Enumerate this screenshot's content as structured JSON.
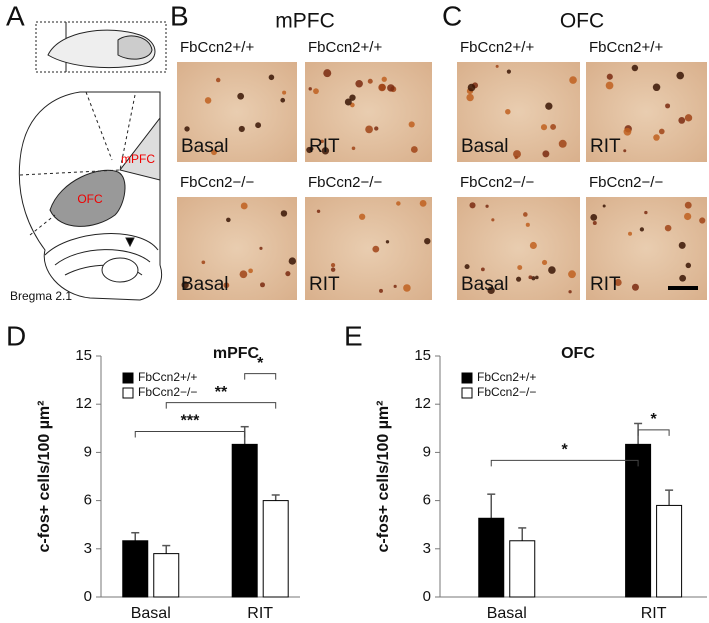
{
  "panels": {
    "A": {
      "letter": "A",
      "bregma": "Bregma 2.1",
      "regions": [
        "mPFC",
        "OFC"
      ]
    },
    "B": {
      "letter": "B",
      "title": "mPFC",
      "tiles": [
        {
          "genotype": "FbCcn2+/+",
          "condition": "Basal"
        },
        {
          "genotype": "FbCcn2+/+",
          "condition": "RIT"
        },
        {
          "genotype": "FbCcn2−/−",
          "condition": "Basal"
        },
        {
          "genotype": "FbCcn2−/−",
          "condition": "RIT"
        }
      ]
    },
    "C": {
      "letter": "C",
      "title": "OFC",
      "tiles": [
        {
          "genotype": "FbCcn2+/+",
          "condition": "Basal"
        },
        {
          "genotype": "FbCcn2+/+",
          "condition": "RIT"
        },
        {
          "genotype": "FbCcn2−/−",
          "condition": "Basal"
        },
        {
          "genotype": "FbCcn2−/−",
          "condition": "RIT"
        }
      ]
    }
  },
  "chart_data": [
    {
      "type": "bar",
      "panel_label": "D",
      "title": "mPFC",
      "y_label": "c-fos+ cells/100 µm²",
      "categories": [
        "Basal",
        "RIT"
      ],
      "series": [
        {
          "name": "FbCcn2+/+",
          "color": "#000000",
          "values": [
            3.5,
            9.5
          ],
          "errors": [
            0.5,
            1.1
          ]
        },
        {
          "name": "FbCcn2−/−",
          "color": "#ffffff",
          "values": [
            2.7,
            6.0
          ],
          "errors": [
            0.5,
            0.35
          ]
        }
      ],
      "ylim": [
        0,
        15
      ],
      "yticks": [
        0,
        3,
        6,
        9,
        12,
        15
      ],
      "annotations": [
        "***",
        "**",
        "*"
      ]
    },
    {
      "type": "bar",
      "panel_label": "E",
      "title": "OFC",
      "y_label": "c-fos+ cells/100 µm²",
      "categories": [
        "Basal",
        "RIT"
      ],
      "series": [
        {
          "name": "FbCcn2+/+",
          "color": "#000000",
          "values": [
            4.9,
            9.5
          ],
          "errors": [
            1.5,
            1.3
          ]
        },
        {
          "name": "FbCcn2−/−",
          "color": "#ffffff",
          "values": [
            3.5,
            5.7
          ],
          "errors": [
            0.8,
            0.95
          ]
        }
      ],
      "ylim": [
        0,
        15
      ],
      "yticks": [
        0,
        3,
        6,
        9,
        12,
        15
      ],
      "annotations": [
        "*",
        "*"
      ]
    }
  ]
}
